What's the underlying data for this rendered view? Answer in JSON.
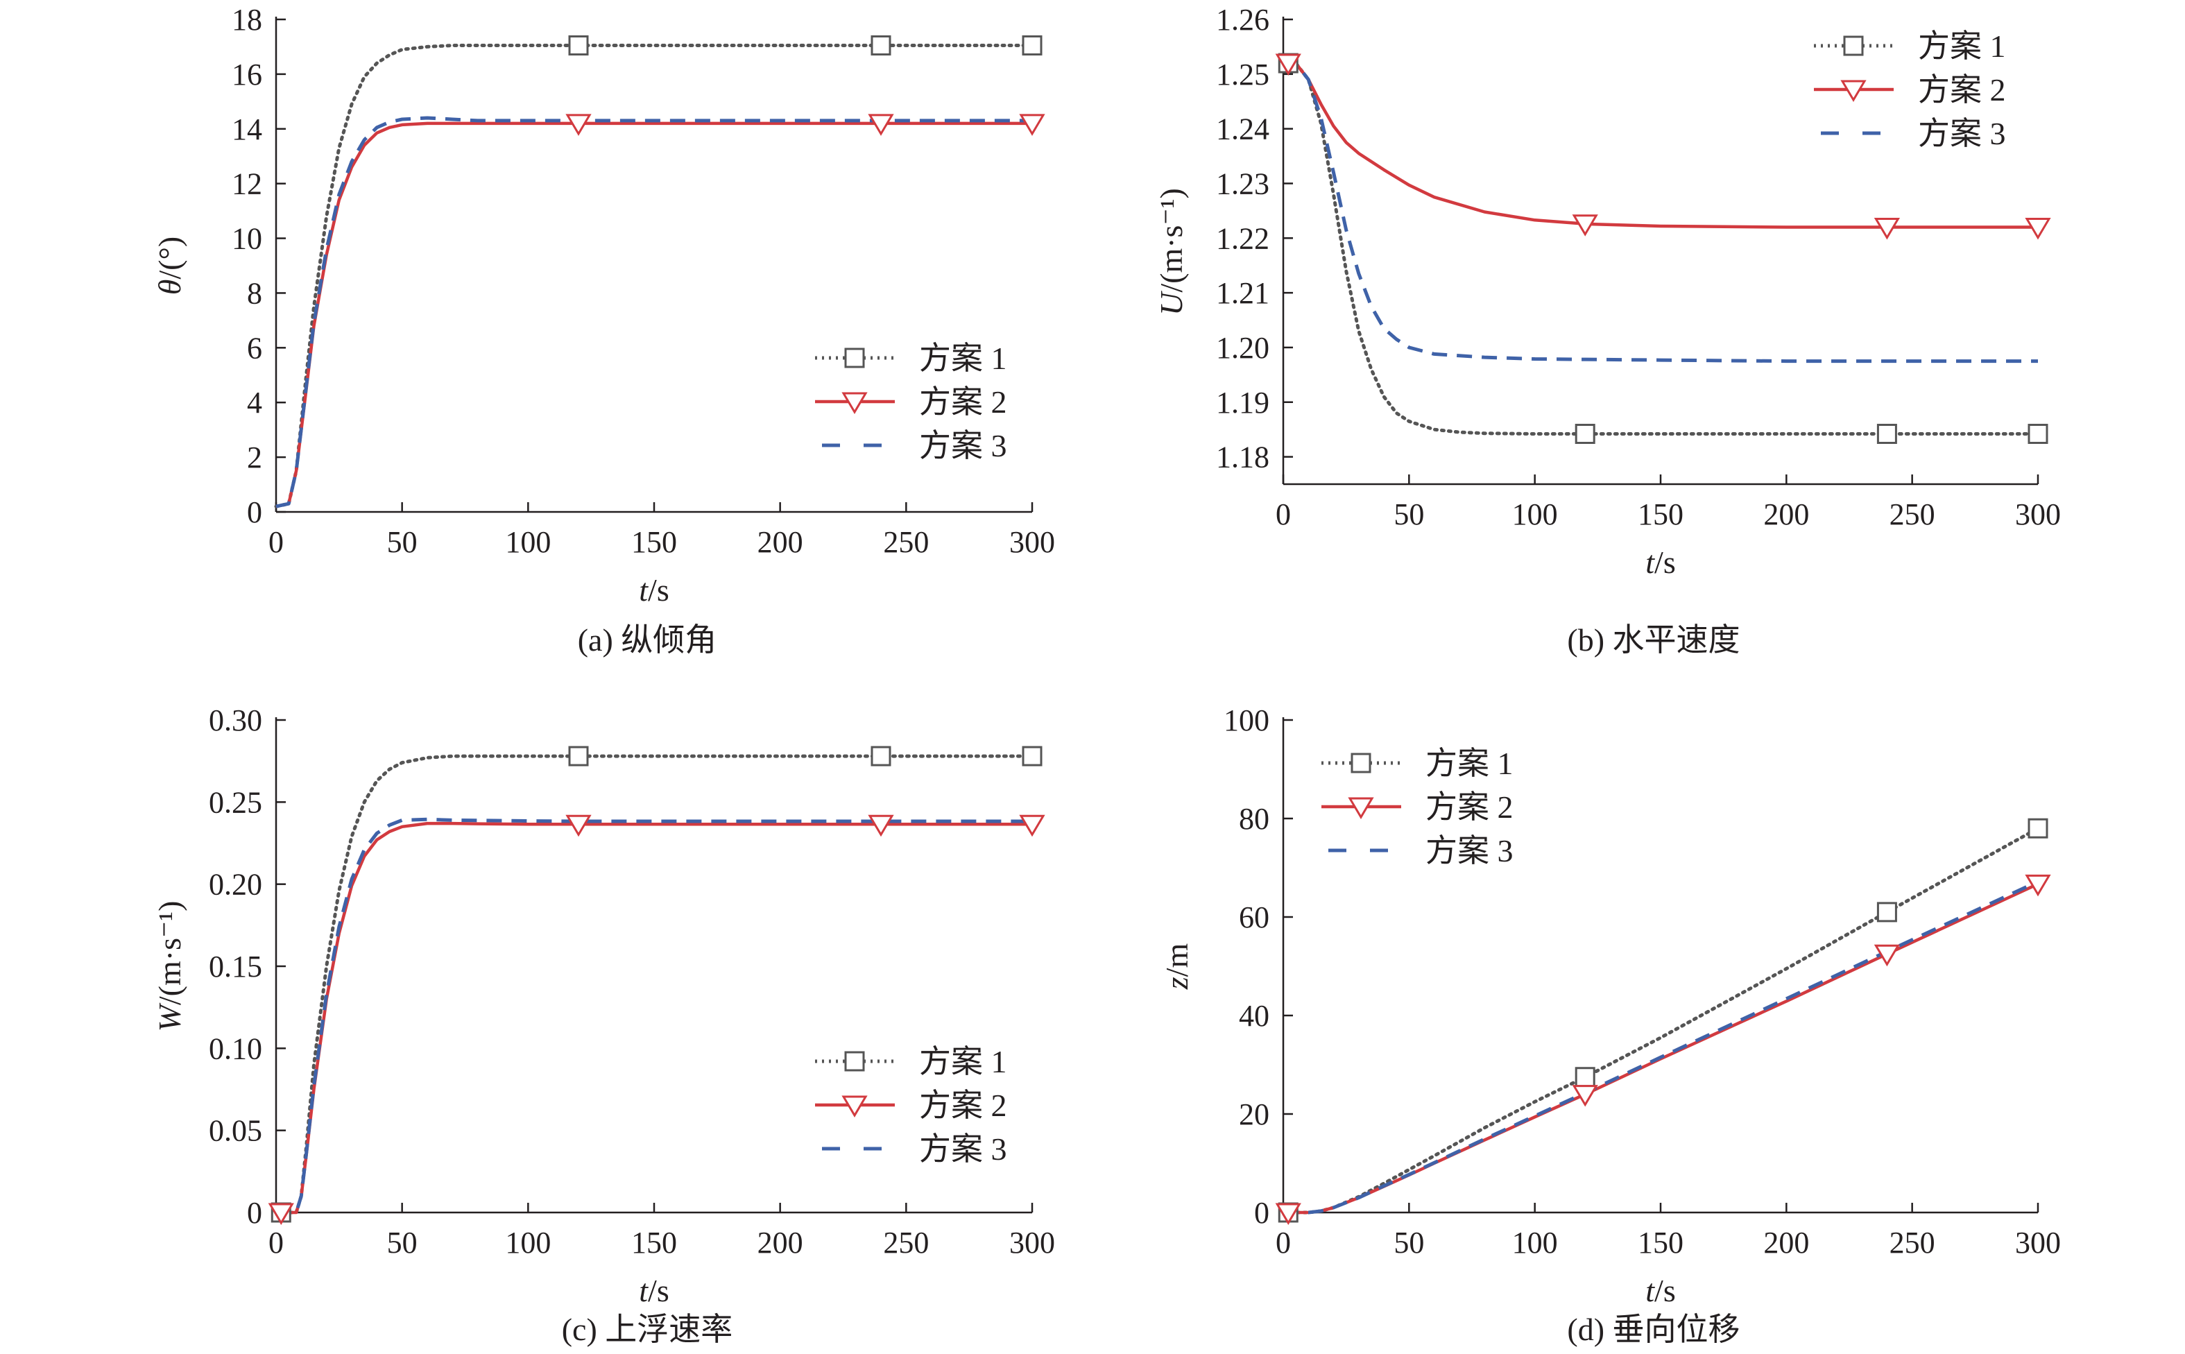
{
  "colors": {
    "series1": "#555555",
    "series2": "#d23a3f",
    "series3": "#3f62a8",
    "axis": "#231f20"
  },
  "markers": {
    "series1": "square",
    "series2": "triangle-down",
    "series3": "none"
  },
  "chart_data": [
    {
      "type": "line",
      "caption": "(a) 纵倾角",
      "xlabel": {
        "var": "t",
        "unit": "/s"
      },
      "ylabel": {
        "var": "θ",
        "unit": "/(°)"
      },
      "xlim": [
        0,
        300
      ],
      "ylim": [
        0,
        18
      ],
      "xticks": [
        0,
        50,
        100,
        150,
        200,
        250,
        300
      ],
      "yticks": [
        0,
        2,
        4,
        6,
        8,
        10,
        12,
        14,
        16,
        18
      ],
      "ytick_labels": [
        "0",
        "2",
        "4",
        "6",
        "8",
        "10",
        "12",
        "14",
        "16",
        "18"
      ],
      "legend": "lower-right",
      "series": [
        {
          "name": "方案 1",
          "style": "dotted",
          "marker": "square",
          "x": [
            0,
            5,
            8,
            12,
            15,
            20,
            25,
            30,
            35,
            40,
            45,
            50,
            60,
            70,
            80,
            100,
            120,
            150,
            200,
            240,
            300
          ],
          "y": [
            0.2,
            0.3,
            1.5,
            5.0,
            7.5,
            10.8,
            13.3,
            14.9,
            15.9,
            16.4,
            16.7,
            16.9,
            17.0,
            17.05,
            17.05,
            17.05,
            17.05,
            17.05,
            17.05,
            17.05,
            17.05
          ],
          "marker_x": [
            120,
            240,
            300
          ]
        },
        {
          "name": "方案 2",
          "style": "solid",
          "marker": "triangle-down",
          "x": [
            0,
            5,
            8,
            12,
            15,
            20,
            25,
            30,
            35,
            40,
            45,
            50,
            60,
            70,
            80,
            100,
            120,
            150,
            200,
            240,
            300
          ],
          "y": [
            0.2,
            0.3,
            1.5,
            4.5,
            6.8,
            9.4,
            11.4,
            12.6,
            13.4,
            13.85,
            14.05,
            14.15,
            14.2,
            14.2,
            14.2,
            14.2,
            14.2,
            14.2,
            14.2,
            14.2,
            14.2
          ],
          "marker_x": [
            120,
            240,
            300
          ]
        },
        {
          "name": "方案 3",
          "style": "dashed",
          "marker": "none",
          "x": [
            0,
            5,
            8,
            12,
            15,
            20,
            25,
            30,
            35,
            40,
            45,
            50,
            60,
            70,
            80,
            100,
            120,
            150,
            200,
            240,
            300
          ],
          "y": [
            0.2,
            0.3,
            1.5,
            4.6,
            6.9,
            9.6,
            11.6,
            12.8,
            13.6,
            14.05,
            14.25,
            14.35,
            14.4,
            14.35,
            14.3,
            14.3,
            14.3,
            14.3,
            14.3,
            14.3,
            14.3
          ]
        }
      ]
    },
    {
      "type": "line",
      "caption": "(b) 水平速度",
      "xlabel": {
        "var": "t",
        "unit": "/s"
      },
      "ylabel": {
        "var": "U",
        "unit": "/(m·s⁻¹)"
      },
      "xlim": [
        0,
        300
      ],
      "ylim": [
        1.175,
        1.26
      ],
      "xticks": [
        0,
        50,
        100,
        150,
        200,
        250,
        300
      ],
      "yticks": [
        1.18,
        1.19,
        1.2,
        1.21,
        1.22,
        1.23,
        1.24,
        1.25,
        1.26
      ],
      "ytick_labels": [
        "1.18",
        "1.19",
        "1.20",
        "1.21",
        "1.22",
        "1.23",
        "1.24",
        "1.25",
        "1.26"
      ],
      "legend": "top-right",
      "series": [
        {
          "name": "方案 1",
          "style": "dotted",
          "marker": "square",
          "x": [
            0,
            5,
            10,
            15,
            20,
            25,
            30,
            35,
            40,
            45,
            50,
            60,
            70,
            80,
            100,
            120,
            150,
            200,
            240,
            300
          ],
          "y": [
            1.252,
            1.252,
            1.249,
            1.241,
            1.228,
            1.214,
            1.203,
            1.196,
            1.191,
            1.188,
            1.1865,
            1.185,
            1.1845,
            1.1843,
            1.1842,
            1.1842,
            1.1842,
            1.1842,
            1.1842,
            1.1842
          ],
          "marker_x": [
            2,
            120,
            240,
            300
          ]
        },
        {
          "name": "方案 2",
          "style": "solid",
          "marker": "triangle-down",
          "x": [
            0,
            5,
            10,
            15,
            20,
            25,
            30,
            40,
            50,
            60,
            80,
            100,
            120,
            150,
            200,
            240,
            300
          ],
          "y": [
            1.252,
            1.252,
            1.249,
            1.2445,
            1.2405,
            1.2375,
            1.2355,
            1.2325,
            1.2297,
            1.2275,
            1.2248,
            1.2233,
            1.2226,
            1.2222,
            1.222,
            1.222,
            1.222
          ],
          "marker_x": [
            2,
            120,
            240,
            300
          ]
        },
        {
          "name": "方案 3",
          "style": "dashed",
          "marker": "none",
          "x": [
            0,
            5,
            10,
            15,
            20,
            25,
            30,
            35,
            40,
            45,
            50,
            60,
            80,
            100,
            150,
            200,
            300
          ],
          "y": [
            1.252,
            1.252,
            1.249,
            1.242,
            1.232,
            1.2215,
            1.2135,
            1.2075,
            1.2035,
            1.2015,
            1.2,
            1.1988,
            1.1982,
            1.1979,
            1.1977,
            1.1975,
            1.1975
          ]
        }
      ]
    },
    {
      "type": "line",
      "caption": "(c) 上浮速率",
      "xlabel": {
        "var": "t",
        "unit": "/s"
      },
      "ylabel": {
        "var": "W",
        "unit": "/(m·s⁻¹)"
      },
      "xlim": [
        0,
        300
      ],
      "ylim": [
        0,
        0.3
      ],
      "xticks": [
        0,
        50,
        100,
        150,
        200,
        250,
        300
      ],
      "yticks": [
        0,
        0.05,
        0.1,
        0.15,
        0.2,
        0.25,
        0.3
      ],
      "ytick_labels": [
        "0",
        "0.05",
        "0.10",
        "0.15",
        "0.20",
        "0.25",
        "0.30"
      ],
      "legend": "lower-right",
      "series": [
        {
          "name": "方案 1",
          "style": "dotted",
          "marker": "square",
          "x": [
            0,
            5,
            8,
            10,
            12,
            15,
            20,
            25,
            30,
            35,
            40,
            45,
            50,
            60,
            70,
            80,
            100,
            120,
            150,
            200,
            240,
            300
          ],
          "y": [
            0,
            0,
            0,
            0.01,
            0.04,
            0.09,
            0.15,
            0.196,
            0.229,
            0.25,
            0.263,
            0.27,
            0.274,
            0.277,
            0.278,
            0.278,
            0.278,
            0.278,
            0.278,
            0.278,
            0.278,
            0.278
          ],
          "marker_x": [
            2,
            120,
            240,
            300
          ]
        },
        {
          "name": "方案 2",
          "style": "solid",
          "marker": "triangle-down",
          "x": [
            0,
            5,
            8,
            10,
            12,
            15,
            20,
            25,
            30,
            35,
            40,
            45,
            50,
            60,
            70,
            80,
            100,
            120,
            150,
            200,
            240,
            300
          ],
          "y": [
            0,
            0,
            0,
            0.01,
            0.035,
            0.075,
            0.13,
            0.17,
            0.199,
            0.217,
            0.227,
            0.232,
            0.235,
            0.237,
            0.237,
            0.2368,
            0.2365,
            0.2365,
            0.2365,
            0.2365,
            0.2365,
            0.2365
          ],
          "marker_x": [
            2,
            120,
            240,
            300
          ]
        },
        {
          "name": "方案 3",
          "style": "dashed",
          "marker": "none",
          "x": [
            0,
            5,
            8,
            10,
            12,
            15,
            20,
            25,
            30,
            35,
            40,
            45,
            50,
            60,
            70,
            80,
            100,
            120,
            150,
            200,
            240,
            300
          ],
          "y": [
            0,
            0,
            0,
            0.01,
            0.036,
            0.077,
            0.133,
            0.174,
            0.203,
            0.221,
            0.231,
            0.236,
            0.239,
            0.2395,
            0.239,
            0.2388,
            0.2385,
            0.2383,
            0.2383,
            0.2383,
            0.2383,
            0.2383
          ]
        }
      ]
    },
    {
      "type": "line",
      "caption": "(d) 垂向位移",
      "xlabel": {
        "var": "t",
        "unit": "/s"
      },
      "ylabel": {
        "var": "z",
        "unit": "/m"
      },
      "xlim": [
        0,
        300
      ],
      "ylim": [
        0,
        100
      ],
      "xticks": [
        0,
        50,
        100,
        150,
        200,
        250,
        300
      ],
      "yticks": [
        0,
        20,
        40,
        60,
        80,
        100
      ],
      "ytick_labels": [
        "0",
        "20",
        "40",
        "60",
        "80",
        "100"
      ],
      "legend": "top-left",
      "series": [
        {
          "name": "方案 1",
          "style": "dotted",
          "marker": "square",
          "x": [
            0,
            10,
            15,
            20,
            30,
            40,
            50,
            60,
            80,
            100,
            120,
            150,
            200,
            240,
            300
          ],
          "y": [
            0,
            0,
            0.3,
            1.0,
            3.2,
            5.9,
            8.7,
            11.5,
            17.2,
            22.5,
            27.5,
            35.5,
            49.5,
            61.0,
            78.0
          ],
          "marker_x": [
            2,
            120,
            240,
            300
          ]
        },
        {
          "name": "方案 2",
          "style": "solid",
          "marker": "triangle-down",
          "x": [
            0,
            10,
            15,
            20,
            30,
            40,
            50,
            60,
            80,
            100,
            120,
            150,
            200,
            240,
            300
          ],
          "y": [
            0,
            0,
            0.3,
            1.0,
            3.0,
            5.3,
            7.6,
            10.0,
            14.7,
            19.4,
            24.0,
            31.2,
            42.9,
            52.5,
            66.7
          ],
          "marker_x": [
            2,
            120,
            240,
            300
          ]
        },
        {
          "name": "方案 3",
          "style": "dashed",
          "marker": "none",
          "x": [
            0,
            10,
            15,
            20,
            30,
            40,
            50,
            60,
            80,
            100,
            120,
            150,
            200,
            240,
            300
          ],
          "y": [
            0,
            0,
            0.3,
            1.0,
            3.0,
            5.4,
            7.7,
            10.1,
            14.9,
            19.6,
            24.3,
            31.5,
            43.4,
            53.0,
            67.2
          ]
        }
      ]
    }
  ]
}
